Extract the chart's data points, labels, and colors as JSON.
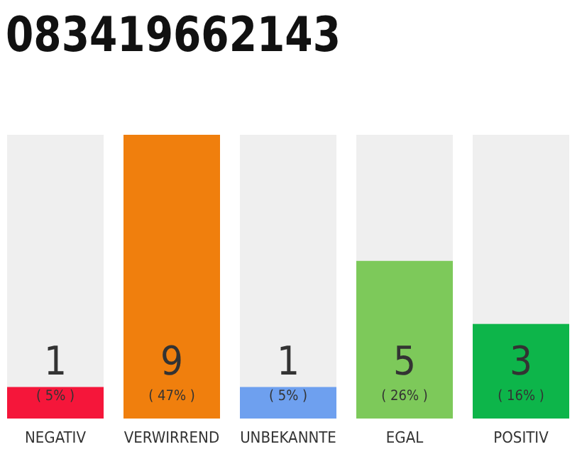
{
  "chart_data": {
    "type": "bar",
    "title": "083419662143",
    "categories": [
      "NEGATIV",
      "VERWIRREND",
      "UNBEKANNTE",
      "EGAL",
      "POSITIV"
    ],
    "values": [
      1,
      9,
      1,
      5,
      3
    ],
    "colors": [
      "#f5163a",
      "#f07f0d",
      "#6ea0ef",
      "#7dc95a",
      "#0db54a"
    ],
    "data_labels": true,
    "annotations": [
      "( 5% )",
      "( 47% )",
      "( 5% )",
      "( 26% )",
      "( 16% )"
    ]
  }
}
